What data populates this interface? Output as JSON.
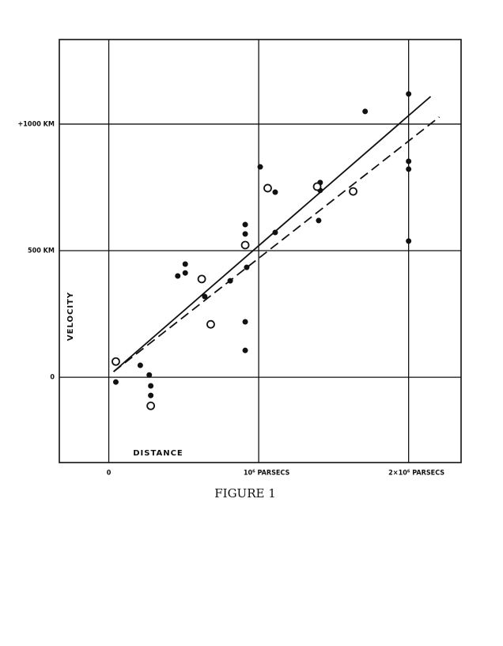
{
  "chart_data": {
    "type": "scatter",
    "caption": "FIGURE 1",
    "x_label": "DISTANCE",
    "y_label": "VELOCITY",
    "xlim": [
      -330000,
      2350000
    ],
    "ylim": [
      -337,
      1334
    ],
    "xticks": [
      0,
      {
        "value": 1000000,
        "label": "10⁶ PARSECS"
      },
      {
        "value": 2000000,
        "label": "2×10⁶ PARSECS"
      }
    ],
    "yticks": [
      0,
      {
        "value": 500,
        "label": "500 KM"
      },
      {
        "value": 1000,
        "label": "+1000 KM"
      }
    ],
    "grid": true,
    "series": [
      {
        "marker": "filled",
        "color": "#111",
        "x": [
          47000,
          210000,
          270000,
          280000,
          280000,
          460000,
          510000,
          510000,
          640000,
          810000,
          910000,
          910000,
          910000,
          910000,
          920000,
          1010000,
          1110000,
          1110000,
          1400000,
          1410000,
          1410000,
          1710000,
          2000000,
          2000000,
          2000000,
          2000000
        ],
        "values": [
          -19,
          47,
          9,
          -34,
          -72,
          400,
          447,
          412,
          319,
          381,
          603,
          566,
          219,
          106,
          434,
          831,
          731,
          572,
          619,
          769,
          738,
          1050,
          1119,
          853,
          822,
          538
        ]
      },
      {
        "marker": "open",
        "color": "#111",
        "x": [
          47000,
          280000,
          620000,
          680000,
          910000,
          1060000,
          1390000,
          1630000
        ],
        "values": [
          62,
          -113,
          388,
          209,
          522,
          747,
          753,
          734
        ]
      },
      {
        "line": "solid",
        "color": "#111",
        "x": [
          32000,
          2147000
        ],
        "values": [
          22,
          1109
        ]
      },
      {
        "line": "dashed",
        "color": "#111",
        "x": [
          32000,
          2205000
        ],
        "values": [
          22,
          1028
        ]
      }
    ]
  }
}
